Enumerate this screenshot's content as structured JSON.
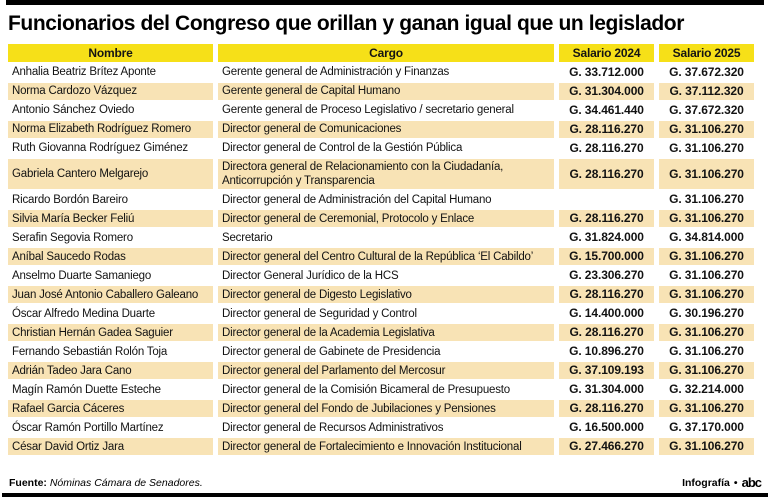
{
  "title": "Funcionarios del Congreso que orillan y ganan igual que un legislador",
  "colors": {
    "header_yellow": "#f6e018",
    "row_tan": "#f8e3b5",
    "row_white": "#ffffff",
    "rule_black": "#000000"
  },
  "chart_data": {
    "type": "table",
    "title": "Funcionarios del Congreso que orillan y ganan igual que un legislador",
    "currency_prefix": "G.",
    "columns": [
      "Nombre",
      "Cargo",
      "Salario 2024",
      "Salario 2025"
    ],
    "rows": [
      {
        "name": "Anhalia Beatriz Brítez Aponte",
        "cargo": "Gerente general de Administración y Finanzas",
        "salario_2024": "G. 33.712.000",
        "salario_2025": "G. 37.672.320"
      },
      {
        "name": "Norma Cardozo Vázquez",
        "cargo": "Gerente general de Capital Humano",
        "salario_2024": "G. 31.304.000",
        "salario_2025": "G. 37.112.320"
      },
      {
        "name": "Antonio Sánchez Oviedo",
        "cargo": "Gerente general de Proceso Legislativo / secretario general",
        "salario_2024": "G. 34.461.440",
        "salario_2025": "G. 37.672.320"
      },
      {
        "name": "Norma Elizabeth Rodríguez Romero",
        "cargo": "Director general de Comunicaciones",
        "salario_2024": "G. 28.116.270",
        "salario_2025": "G. 31.106.270"
      },
      {
        "name": "Ruth Giovanna Rodríguez Giménez",
        "cargo": "Director general de Control de la Gestión Pública",
        "salario_2024": "G. 28.116.270",
        "salario_2025": "G. 31.106.270"
      },
      {
        "name": "Gabriela Cantero Melgarejo",
        "cargo": "Directora general de Relacionamiento con la Ciudadanía, Anticorrupción y Transparencia",
        "salario_2024": "G. 28.116.270",
        "salario_2025": "G. 31.106.270"
      },
      {
        "name": "Ricardo Bordón Bareiro",
        "cargo": "Director general de Administración del Capital Humano",
        "salario_2024": "",
        "salario_2025": "G. 31.106.270"
      },
      {
        "name": "Silvia María Becker Feliú",
        "cargo": "Director general de Ceremonial, Protocolo y Enlace",
        "salario_2024": "G. 28.116.270",
        "salario_2025": "G. 31.106.270"
      },
      {
        "name": "Serafin Segovia Romero",
        "cargo": "Secretario",
        "salario_2024": "G. 31.824.000",
        "salario_2025": "G. 34.814.000"
      },
      {
        "name": "Aníbal Saucedo Rodas",
        "cargo": "Director general del Centro Cultural de la República ‘El Cabildo’",
        "salario_2024": "G. 15.700.000",
        "salario_2025": "G. 31.106.270"
      },
      {
        "name": "Anselmo Duarte Samaniego",
        "cargo": "Director General Jurídico de la HCS",
        "salario_2024": "G. 23.306.270",
        "salario_2025": "G. 31.106.270"
      },
      {
        "name": "Juan José Antonio Caballero Galeano",
        "cargo": "Director general de Digesto Legislativo",
        "salario_2024": "G. 28.116.270",
        "salario_2025": "G. 31.106.270"
      },
      {
        "name": "Óscar Alfredo Medina Duarte",
        "cargo": "Director general de Seguridad y Control",
        "salario_2024": "G. 14.400.000",
        "salario_2025": "G. 30.196.270"
      },
      {
        "name": "Christian Hernán Gadea Saguier",
        "cargo": "Director general de la Academia Legislativa",
        "salario_2024": "G. 28.116.270",
        "salario_2025": "G. 31.106.270"
      },
      {
        "name": "Fernando Sebastián Rolón Toja",
        "cargo": "Director general de Gabinete de Presidencia",
        "salario_2024": "G. 10.896.270",
        "salario_2025": "G. 31.106.270"
      },
      {
        "name": "Adrián Tadeo Jara Cano",
        "cargo": "Director general del Parlamento del Mercosur",
        "salario_2024": "G. 37.109.193",
        "salario_2025": "G. 31.106.270"
      },
      {
        "name": "Magín Ramón Duette Esteche",
        "cargo": "Director general de la Comisión Bicameral de Presupuesto",
        "salario_2024": "G. 31.304.000",
        "salario_2025": "G. 32.214.000"
      },
      {
        "name": "Rafael Garcia Cáceres",
        "cargo": "Director general del Fondo de Jubilaciones y Pensiones",
        "salario_2024": "G. 28.116.270",
        "salario_2025": "G. 31.106.270"
      },
      {
        "name": "Óscar Ramón Portillo Martínez",
        "cargo": "Director general de Recursos Administrativos",
        "salario_2024": "G. 16.500.000",
        "salario_2025": "G. 37.170.000"
      },
      {
        "name": "César David Ortiz Jara",
        "cargo": "Director general de Fortalecimiento e Innovación Institucional",
        "salario_2024": "G. 27.466.270",
        "salario_2025": "G. 31.106.270"
      }
    ]
  },
  "footer": {
    "source_label": "Fuente:",
    "source_text": "Nóminas Cámara de Senadores.",
    "credit_label": "Infografía",
    "credit_separator": "•",
    "logo_text": "abc"
  }
}
